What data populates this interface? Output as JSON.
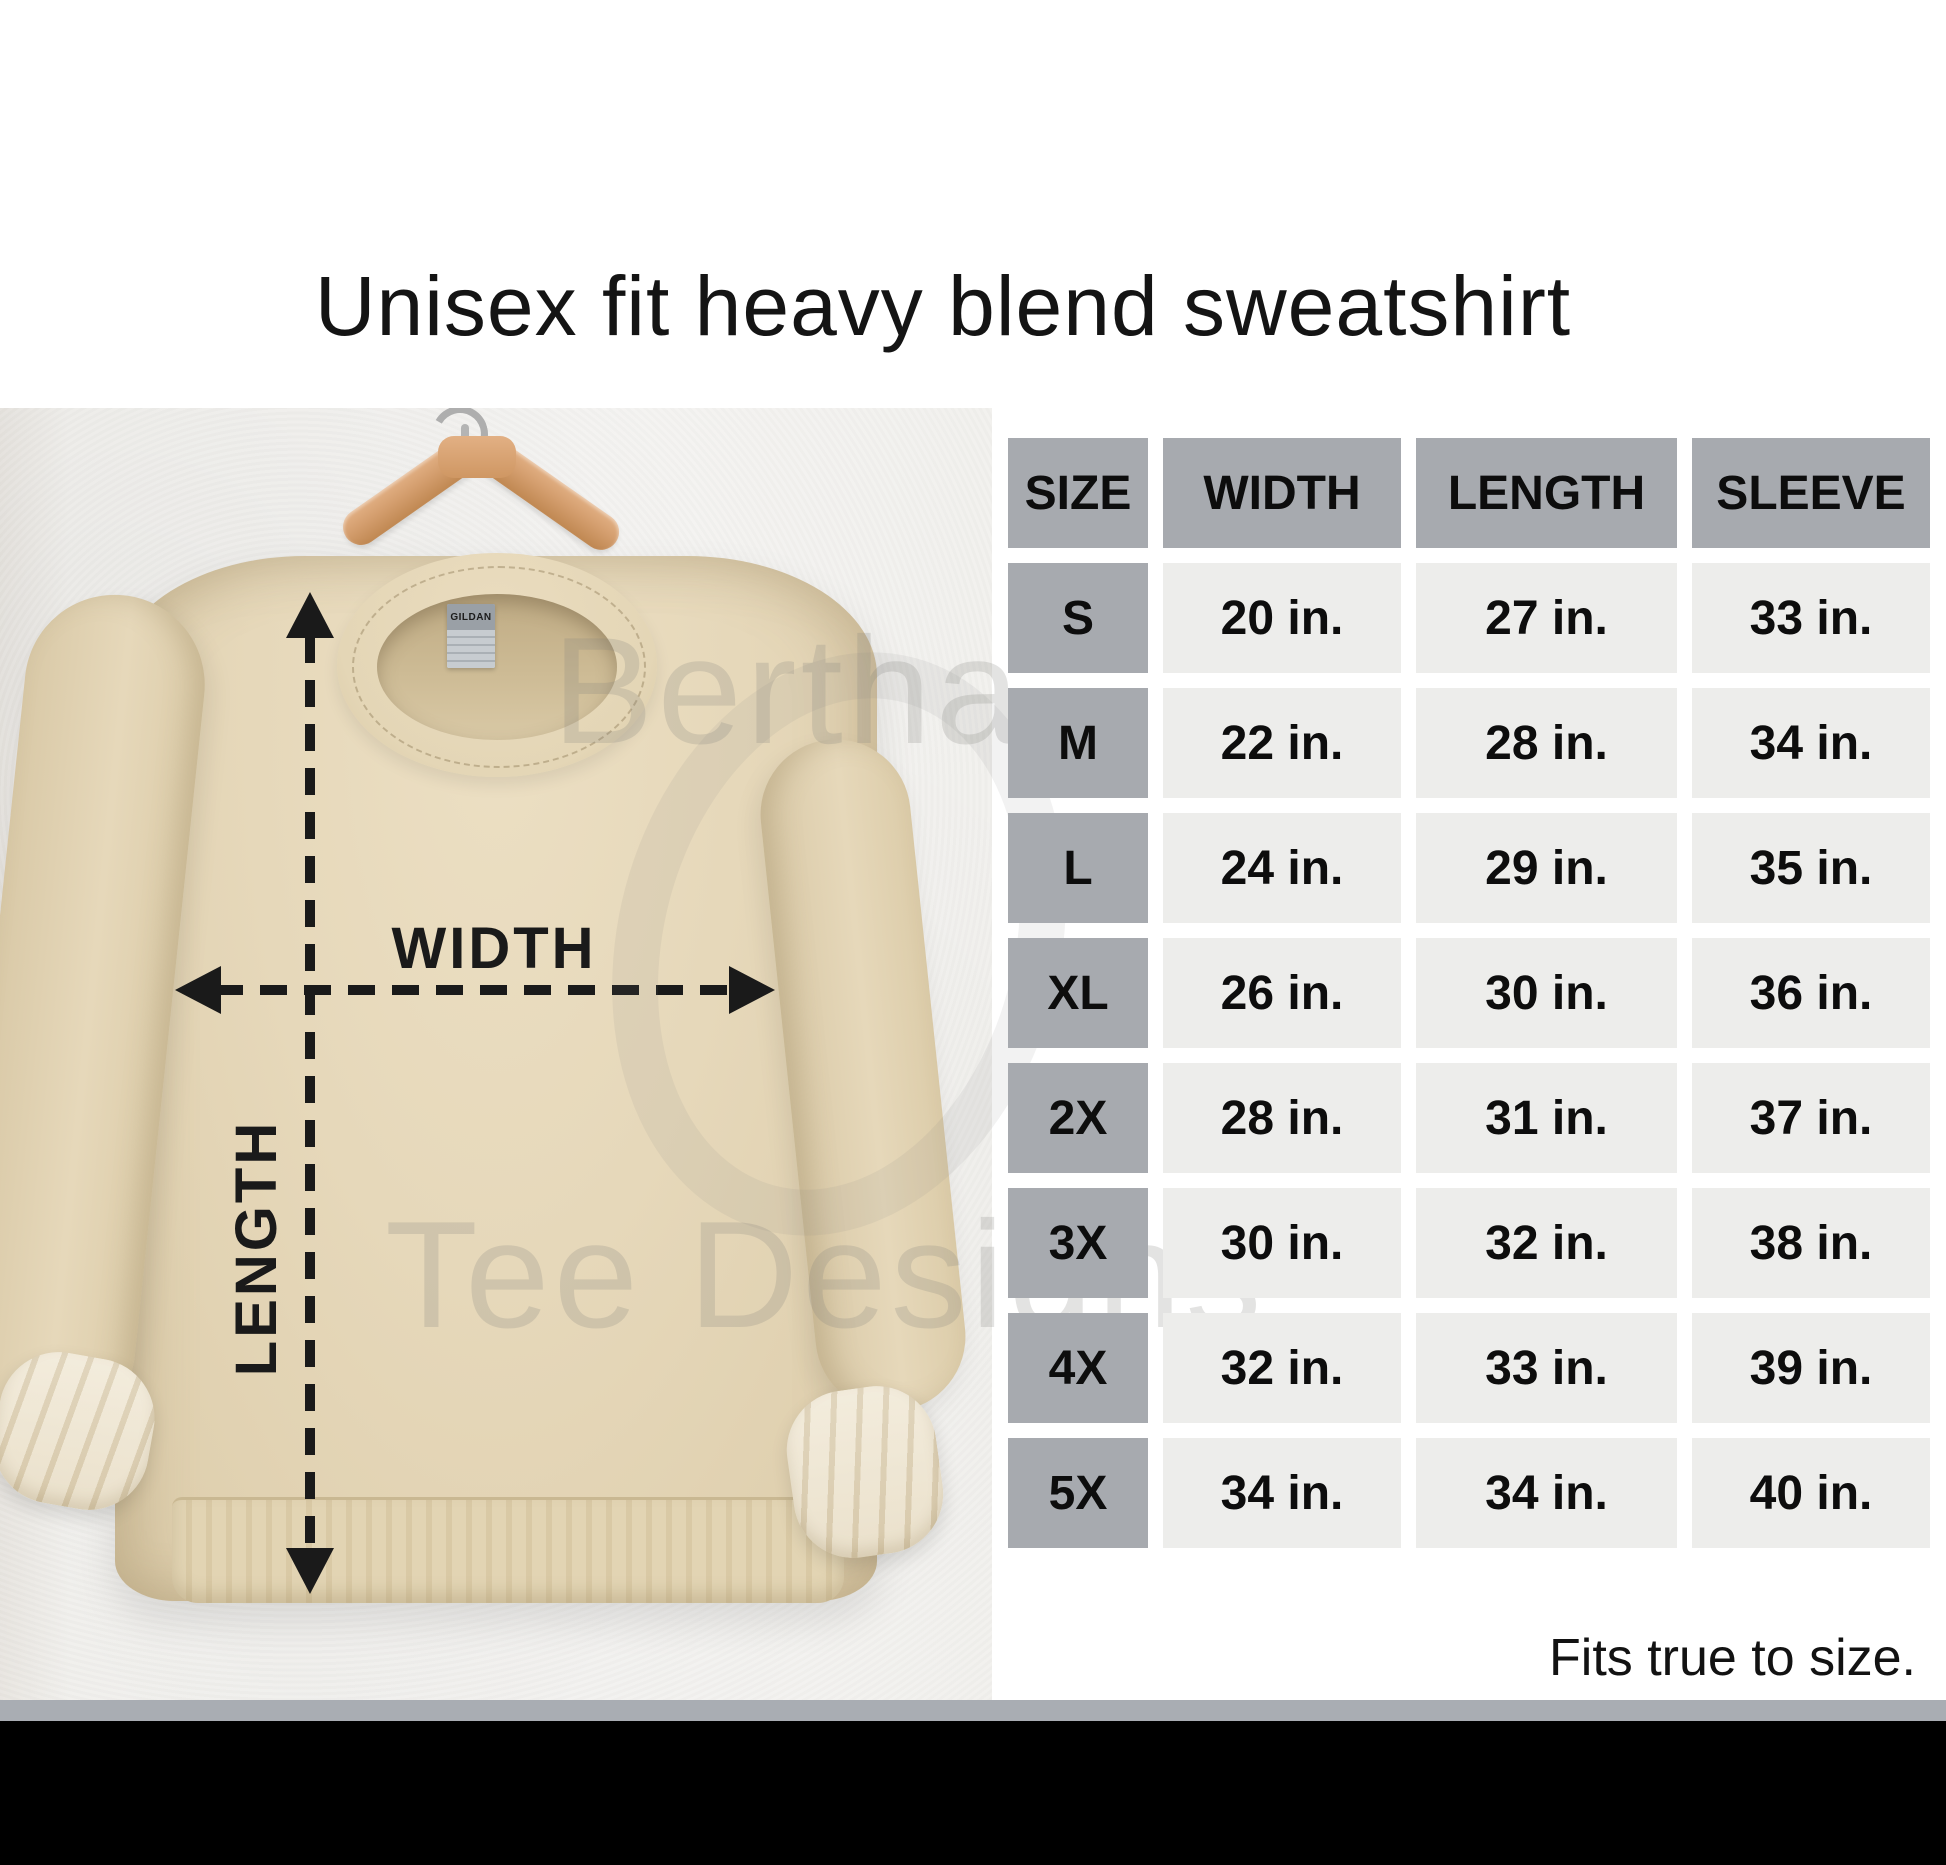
{
  "title": "Unisex fit heavy blend sweatshirt",
  "footer_note": "Fits true to size.",
  "photo": {
    "width_label": "WIDTH",
    "length_label": "LENGTH",
    "garment_tag": "GILDAN",
    "watermark_line1": "Bertha",
    "watermark_line2": "Tee Designs"
  },
  "colors": {
    "table_header_bg": "#a7aaaf",
    "table_cell_bg": "#ededeb",
    "sweatshirt_tan": "#e5d7b9",
    "hanger_wood": "#d49e6e",
    "wall": "#f2f1ee",
    "divider_gray": "#a9adb3",
    "bottom_bar": "#000000",
    "text": "#111111"
  },
  "chart_data": {
    "type": "table",
    "title": "Unisex fit heavy blend sweatshirt",
    "columns": [
      "SIZE",
      "WIDTH",
      "LENGTH",
      "SLEEVE"
    ],
    "rows": [
      {
        "size": "S",
        "width": "20 in.",
        "length": "27 in.",
        "sleeve": "33 in."
      },
      {
        "size": "M",
        "width": "22 in.",
        "length": "28 in.",
        "sleeve": "34 in."
      },
      {
        "size": "L",
        "width": "24 in.",
        "length": "29 in.",
        "sleeve": "35 in."
      },
      {
        "size": "XL",
        "width": "26 in.",
        "length": "30 in.",
        "sleeve": "36 in."
      },
      {
        "size": "2X",
        "width": "28 in.",
        "length": "31 in.",
        "sleeve": "37 in."
      },
      {
        "size": "3X",
        "width": "30 in.",
        "length": "32 in.",
        "sleeve": "38 in."
      },
      {
        "size": "4X",
        "width": "32 in.",
        "length": "33 in.",
        "sleeve": "39 in."
      },
      {
        "size": "5X",
        "width": "34 in.",
        "length": "34 in.",
        "sleeve": "40 in."
      }
    ],
    "note": "Fits true to size.",
    "units": "inches"
  }
}
